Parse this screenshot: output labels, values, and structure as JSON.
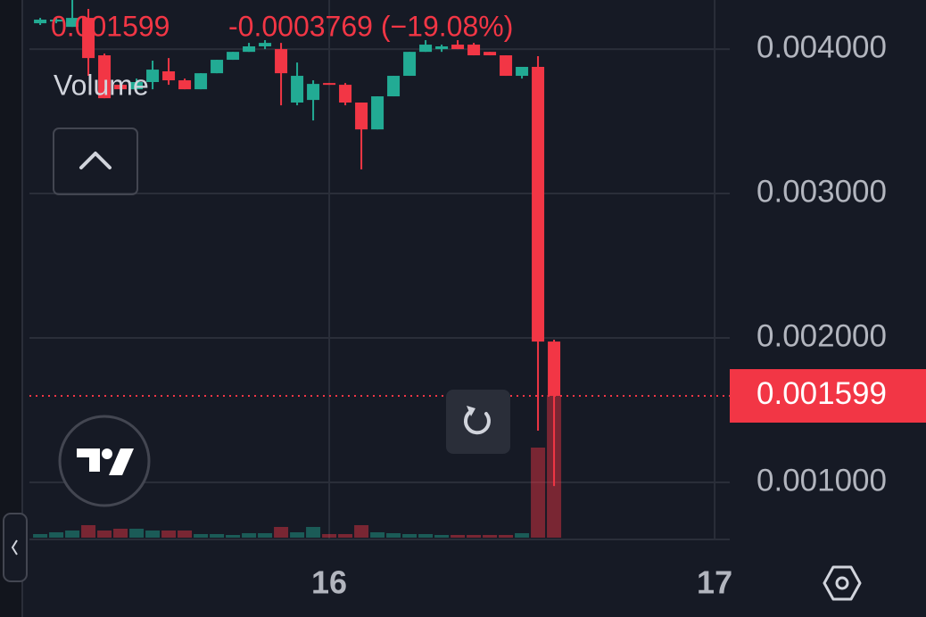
{
  "chart_data": {
    "type": "candlestick",
    "last_price": 0.001599,
    "change": "-0.0003769 (−19.08%)",
    "volume_label": "Volume",
    "up_color": "#22ab94",
    "down_color": "#f23645",
    "x": [
      0,
      1,
      2,
      3,
      4,
      5,
      6,
      7,
      8,
      9,
      10,
      11,
      12,
      13,
      14,
      15,
      16,
      17,
      18,
      19,
      20,
      21,
      22,
      23,
      24,
      25,
      26,
      27,
      28,
      29,
      30,
      31,
      32
    ],
    "open": [
      0.004179,
      0.004191,
      0.004154,
      0.004216,
      0.003957,
      0.003753,
      0.003722,
      0.003772,
      0.003846,
      0.003784,
      0.003722,
      0.003833,
      0.003926,
      0.003981,
      0.004019,
      0.004,
      0.00363,
      0.003648,
      0.003765,
      0.003753,
      0.00363,
      0.003444,
      0.003673,
      0.003815,
      0.003981,
      0.004,
      0.004031,
      0.004031,
      0.003981,
      0.003957,
      0.003815,
      0.003877,
      0.001975
    ],
    "high": [
      0.004216,
      0.004216,
      0.00434,
      0.004278,
      0.003969,
      0.003772,
      0.003796,
      0.00392,
      0.003938,
      0.003796,
      0.003833,
      0.003926,
      0.003981,
      0.004043,
      0.004062,
      0.004043,
      0.003907,
      0.003784,
      0.003765,
      0.003765,
      0.00363,
      0.003673,
      0.003815,
      0.003981,
      0.004062,
      0.004031,
      0.004062,
      0.004043,
      0.003981,
      0.003957,
      0.003877,
      0.003951,
      0.001988
    ],
    "low": [
      0.004167,
      0.004179,
      0.004154,
      0.003815,
      0.00366,
      0.003722,
      0.003722,
      0.003722,
      0.003753,
      0.003722,
      0.003722,
      0.003833,
      0.003926,
      0.003981,
      0.004,
      0.003611,
      0.003611,
      0.003506,
      0.003753,
      0.003611,
      0.003167,
      0.003444,
      0.003673,
      0.003815,
      0.003981,
      0.003981,
      0.004,
      0.003957,
      0.003957,
      0.003815,
      0.003796,
      0.001358,
      0.000975
    ],
    "close": [
      0.004204,
      0.004204,
      0.004216,
      0.003938,
      0.00366,
      0.003722,
      0.003772,
      0.003858,
      0.003784,
      0.003722,
      0.003833,
      0.003926,
      0.003981,
      0.004019,
      0.004043,
      0.003833,
      0.003815,
      0.003759,
      0.003753,
      0.00363,
      0.003444,
      0.003673,
      0.003815,
      0.003981,
      0.004031,
      0.004019,
      0.004,
      0.003957,
      0.003957,
      0.003815,
      0.003877,
      0.001975,
      0.001599
    ],
    "volume": [
      4,
      6,
      8,
      14,
      8,
      10,
      10,
      8,
      8,
      8,
      4,
      4,
      3,
      5,
      5,
      12,
      6,
      12,
      4,
      4,
      14,
      6,
      5,
      4,
      4,
      3,
      3,
      3,
      3,
      3,
      5,
      101,
      160
    ],
    "xlim": [
      -0.67,
      42.94
    ],
    "xticks": [
      {
        "value": 18,
        "label": "16"
      },
      {
        "value": 42,
        "label": "17"
      }
    ],
    "ylim": [
      0.000605,
      0.00434
    ],
    "yticks": [
      {
        "value": 0.004,
        "label": "0.004000"
      },
      {
        "value": 0.003,
        "label": "0.003000"
      },
      {
        "value": 0.002,
        "label": "0.002000"
      },
      {
        "value": 0.001,
        "label": "0.001000"
      }
    ],
    "grid": true
  }
}
